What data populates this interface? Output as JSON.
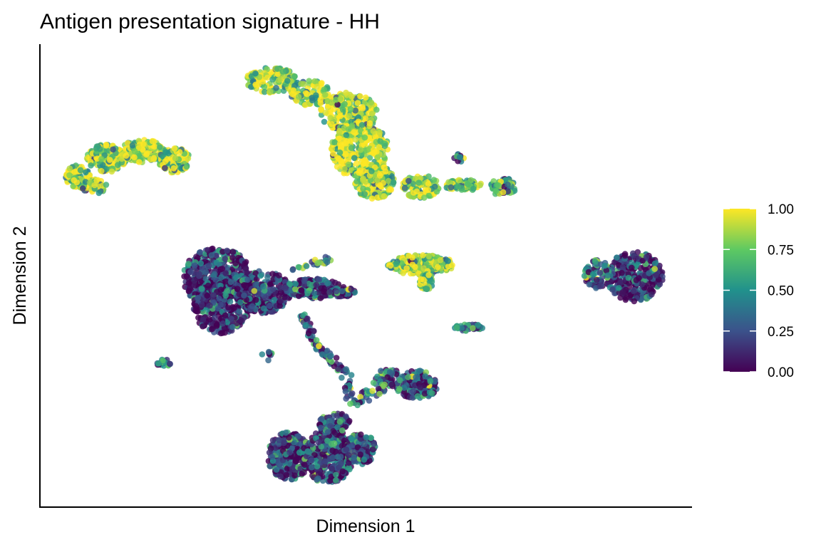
{
  "chart_data": {
    "type": "scatter",
    "title": "Antigen presentation signature - HH",
    "xlabel": "Dimension 1",
    "ylabel": "Dimension 2",
    "x_ticks_shown": false,
    "y_ticks_shown": false,
    "grid": false,
    "legend": {
      "type": "colorbar",
      "placement": "right",
      "range": [
        0,
        1
      ],
      "ticks": [
        0.0,
        0.25,
        0.5,
        0.75,
        1.0
      ],
      "tick_labels": [
        "0.00",
        "0.25",
        "0.50",
        "0.75",
        "1.00"
      ]
    },
    "colormap": "viridis",
    "colors": [
      "#440154",
      "#3b528b",
      "#21918c",
      "#5ec962",
      "#fde725"
    ],
    "xlim": [
      0,
      100
    ],
    "ylim": [
      0,
      100
    ],
    "clusters": [
      {
        "id": "A",
        "cx": 22,
        "cy": 78,
        "mean_value": 0.85
      },
      {
        "id": "B",
        "cx": 52,
        "cy": 86,
        "mean_value": 0.9
      },
      {
        "id": "C",
        "cx": 33,
        "cy": 48,
        "mean_value": 0.15
      },
      {
        "id": "D",
        "cx": 48,
        "cy": 12,
        "mean_value": 0.2
      },
      {
        "id": "E",
        "cx": 60,
        "cy": 51,
        "mean_value": 0.85
      },
      {
        "id": "F",
        "cx": 89,
        "cy": 50,
        "mean_value": 0.15
      },
      {
        "id": "G",
        "cx": 59,
        "cy": 24,
        "mean_value": 0.25
      }
    ]
  }
}
